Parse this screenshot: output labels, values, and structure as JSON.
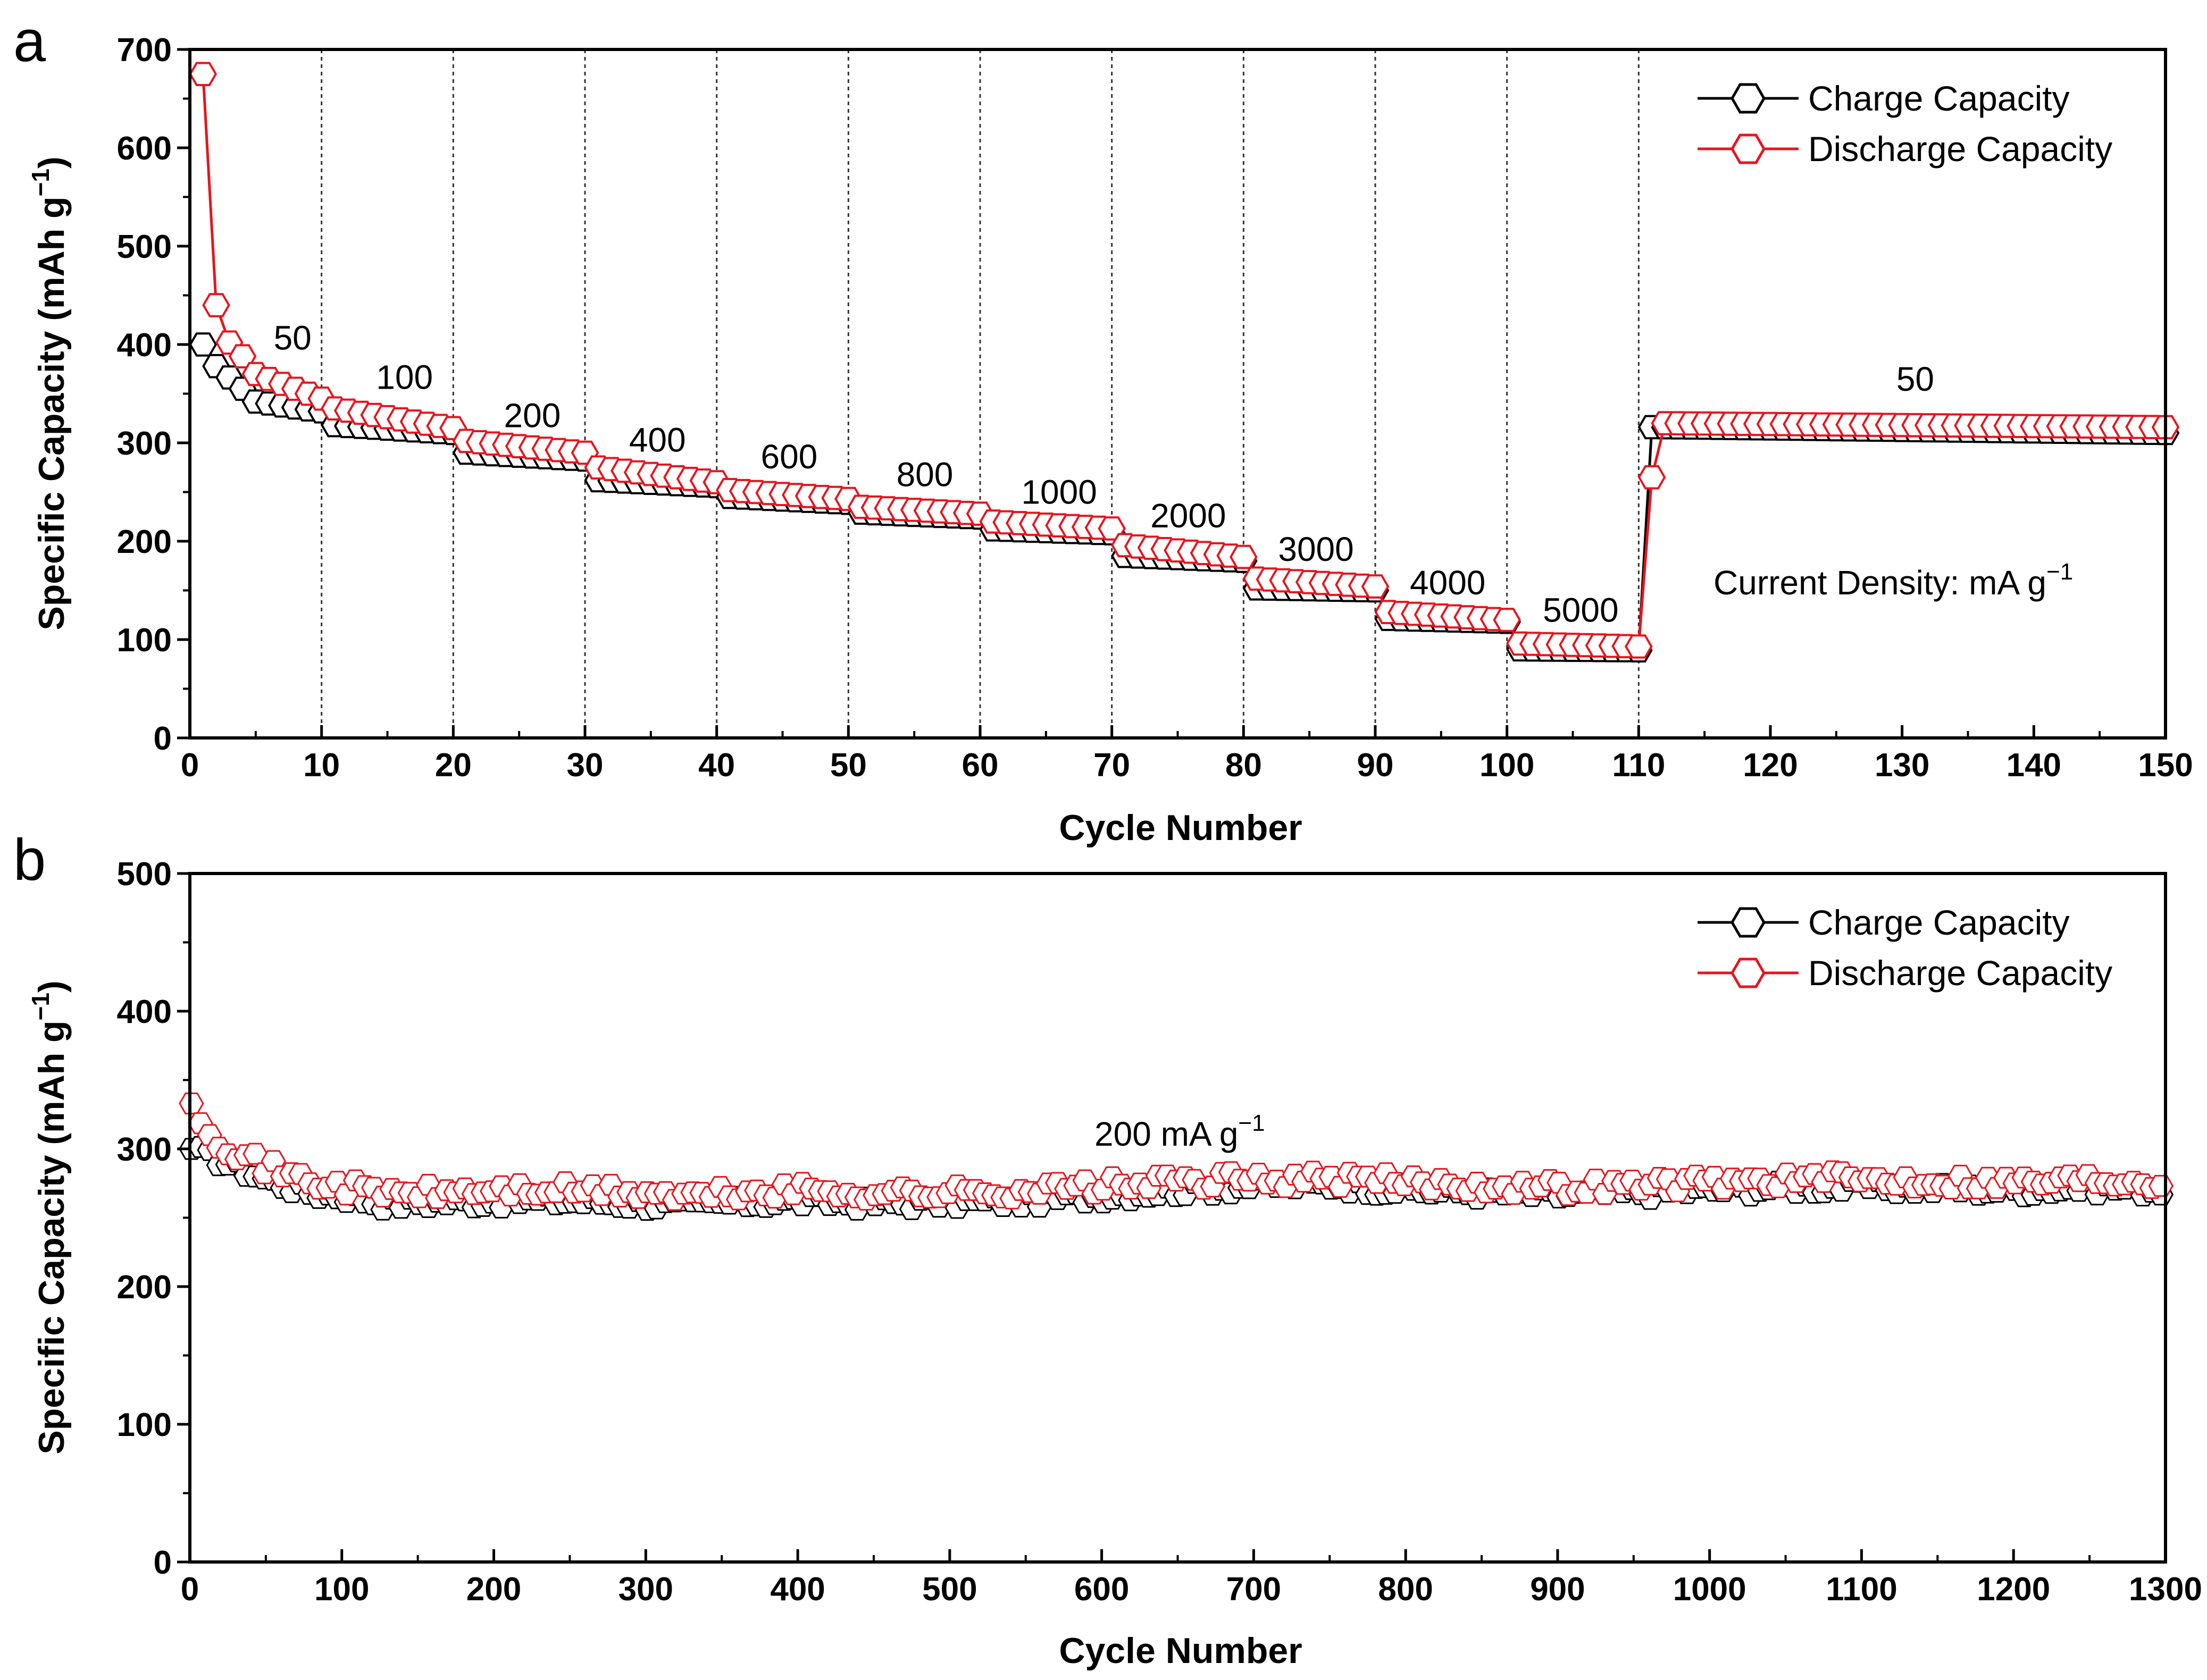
{
  "chart_data": [
    {
      "panel": "a",
      "type": "line",
      "xlabel": "Cycle Number",
      "ylabel_main": "Specific Capacity (mAh g",
      "ylabel_sup": "−1",
      "ylabel_close": ")",
      "xlim": [
        0,
        150
      ],
      "ylim": [
        0,
        700
      ],
      "xticks": [
        "0",
        "10",
        "20",
        "30",
        "40",
        "50",
        "60",
        "70",
        "80",
        "90",
        "100",
        "110",
        "120",
        "130",
        "140",
        "150"
      ],
      "yticks": [
        "0",
        "100",
        "200",
        "300",
        "400",
        "500",
        "600",
        "700"
      ],
      "vertical_dividers": [
        10,
        20,
        30,
        40,
        50,
        60,
        70,
        80,
        90,
        100,
        110
      ],
      "legend": [
        "Charge Capacity",
        "Discharge Capacity"
      ],
      "note_main": "Current Density: mA g",
      "note_sup": "−1",
      "rate_labels": [
        {
          "text": "50",
          "x": 7.8,
          "y": 395
        },
        {
          "text": "100",
          "x": 16.3,
          "y": 355
        },
        {
          "text": "200",
          "x": 26,
          "y": 316
        },
        {
          "text": "400",
          "x": 35.5,
          "y": 291
        },
        {
          "text": "600",
          "x": 45.5,
          "y": 274
        },
        {
          "text": "800",
          "x": 55.8,
          "y": 256
        },
        {
          "text": "1000",
          "x": 66,
          "y": 238
        },
        {
          "text": "2000",
          "x": 75.8,
          "y": 214
        },
        {
          "text": "3000",
          "x": 85.5,
          "y": 180
        },
        {
          "text": "4000",
          "x": 95.5,
          "y": 146
        },
        {
          "text": "5000",
          "x": 105.6,
          "y": 118
        },
        {
          "text": "50",
          "x": 131,
          "y": 353
        }
      ],
      "series": [
        {
          "name": "Charge Capacity",
          "color": "#000000",
          "segments": [
            {
              "from": 1,
              "to": 1,
              "start": 400,
              "end": 400
            },
            {
              "from": 2,
              "to": 4,
              "start": 378,
              "end": 355
            },
            {
              "from": 5,
              "to": 10,
              "start": 342,
              "end": 332
            },
            {
              "from": 11,
              "to": 20,
              "start": 318,
              "end": 310
            },
            {
              "from": 21,
              "to": 30,
              "start": 290,
              "end": 283
            },
            {
              "from": 31,
              "to": 40,
              "start": 262,
              "end": 256
            },
            {
              "from": 41,
              "to": 50,
              "start": 245,
              "end": 239
            },
            {
              "from": 51,
              "to": 60,
              "start": 229,
              "end": 224
            },
            {
              "from": 61,
              "to": 70,
              "start": 212,
              "end": 208
            },
            {
              "from": 71,
              "to": 80,
              "start": 185,
              "end": 180
            },
            {
              "from": 81,
              "to": 90,
              "start": 152,
              "end": 150
            },
            {
              "from": 91,
              "to": 100,
              "start": 121,
              "end": 118
            },
            {
              "from": 101,
              "to": 110,
              "start": 90,
              "end": 89
            },
            {
              "from": 111,
              "to": 150,
              "start": 316,
              "end": 310
            }
          ]
        },
        {
          "name": "Discharge Capacity",
          "color": "#e8141d",
          "segments": [
            {
              "from": 1,
              "to": 1,
              "start": 675,
              "end": 675
            },
            {
              "from": 2,
              "to": 2,
              "start": 440,
              "end": 440
            },
            {
              "from": 3,
              "to": 4,
              "start": 402,
              "end": 388
            },
            {
              "from": 5,
              "to": 10,
              "start": 370,
              "end": 345
            },
            {
              "from": 11,
              "to": 20,
              "start": 335,
              "end": 315
            },
            {
              "from": 21,
              "to": 30,
              "start": 302,
              "end": 290
            },
            {
              "from": 31,
              "to": 40,
              "start": 275,
              "end": 260
            },
            {
              "from": 41,
              "to": 50,
              "start": 252,
              "end": 243
            },
            {
              "from": 51,
              "to": 60,
              "start": 235,
              "end": 228
            },
            {
              "from": 61,
              "to": 70,
              "start": 220,
              "end": 213
            },
            {
              "from": 71,
              "to": 80,
              "start": 196,
              "end": 184
            },
            {
              "from": 81,
              "to": 90,
              "start": 162,
              "end": 154
            },
            {
              "from": 91,
              "to": 100,
              "start": 128,
              "end": 120
            },
            {
              "from": 101,
              "to": 110,
              "start": 96,
              "end": 93
            },
            {
              "from": 111,
              "to": 111,
              "start": 265,
              "end": 265
            },
            {
              "from": 112,
              "to": 150,
              "start": 320,
              "end": 316
            }
          ]
        }
      ]
    },
    {
      "panel": "b",
      "type": "line",
      "xlabel": "Cycle Number",
      "ylabel_main": "Specific Capacity (mAh g",
      "ylabel_sup": "−1",
      "ylabel_close": ")",
      "xlim": [
        0,
        1300
      ],
      "ylim": [
        0,
        500
      ],
      "xticks": [
        "0",
        "100",
        "200",
        "300",
        "400",
        "500",
        "600",
        "700",
        "800",
        "900",
        "1000",
        "1100",
        "1200",
        "1300"
      ],
      "yticks": [
        "0",
        "100",
        "200",
        "300",
        "400",
        "500"
      ],
      "legend": [
        "Charge Capacity",
        "Discharge Capacity"
      ],
      "note_main": "200 mA g",
      "note_sup": "−1",
      "series": [
        {
          "name": "Charge Capacity",
          "color": "#000000",
          "x": [
            1,
            20,
            50,
            80,
            100,
            130,
            160,
            200,
            250,
            300,
            330,
            350,
            400,
            450,
            500,
            550,
            600,
            650,
            700,
            750,
            800,
            850,
            900,
            950,
            1000,
            1050,
            1100,
            1150,
            1200,
            1250,
            1300
          ],
          "y": [
            300,
            292,
            278,
            268,
            266,
            260,
            261,
            262,
            262,
            260,
            258,
            260,
            262,
            260,
            261,
            262,
            266,
            270,
            273,
            274,
            270,
            268,
            266,
            268,
            270,
            272,
            272,
            271,
            270,
            272,
            270
          ]
        },
        {
          "name": "Discharge Capacity",
          "color": "#e8141d",
          "x": [
            1,
            20,
            50,
            80,
            100,
            130,
            160,
            200,
            250,
            300,
            330,
            350,
            400,
            450,
            500,
            550,
            600,
            650,
            700,
            750,
            800,
            850,
            900,
            950,
            1000,
            1050,
            1100,
            1150,
            1200,
            1250,
            1300
          ],
          "y": [
            333,
            305,
            287,
            276,
            273,
            268,
            268,
            270,
            270,
            268,
            265,
            267,
            270,
            268,
            268,
            270,
            273,
            276,
            278,
            278,
            276,
            274,
            272,
            274,
            276,
            278,
            278,
            277,
            276,
            278,
            277
          ]
        }
      ]
    }
  ]
}
